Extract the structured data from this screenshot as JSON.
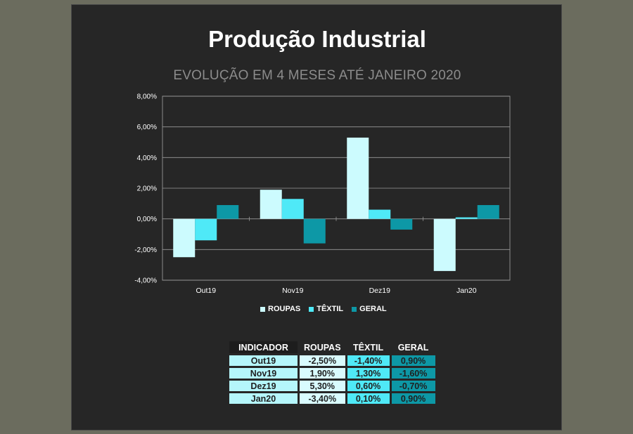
{
  "title": "Produção Industrial",
  "subtitle": "EVOLUÇÃO EM 4 MESES ATÉ JANEIRO 2020",
  "chart_data": {
    "type": "bar",
    "categories": [
      "Out19",
      "Nov19",
      "Dez19",
      "Jan20"
    ],
    "series": [
      {
        "name": "ROUPAS",
        "color": "#ccfbfe",
        "values": [
          -2.5,
          1.9,
          5.3,
          -3.4
        ]
      },
      {
        "name": "TÊXTIL",
        "color": "#4fe9f7",
        "values": [
          -1.4,
          1.3,
          0.6,
          0.1
        ]
      },
      {
        "name": "GERAL",
        "color": "#0d98a6",
        "values": [
          0.9,
          -1.6,
          -0.7,
          0.9
        ]
      }
    ],
    "ylim": [
      -4,
      8
    ],
    "yticks": [
      "-4,00%",
      "-2,00%",
      "0,00%",
      "2,00%",
      "4,00%",
      "6,00%",
      "8,00%"
    ],
    "grid": true,
    "legend_position": "bottom"
  },
  "table": {
    "headers": [
      "INDICADOR",
      "ROUPAS",
      "TÊXTIL",
      "GERAL"
    ],
    "rows": [
      [
        "Out19",
        "-2,50%",
        "-1,40%",
        "0,90%"
      ],
      [
        "Nov19",
        "1,90%",
        "1,30%",
        "-1,60%"
      ],
      [
        "Dez19",
        "5,30%",
        "0,60%",
        "-0,70%"
      ],
      [
        "Jan20",
        "-3,40%",
        "0,10%",
        "0,90%"
      ]
    ]
  }
}
